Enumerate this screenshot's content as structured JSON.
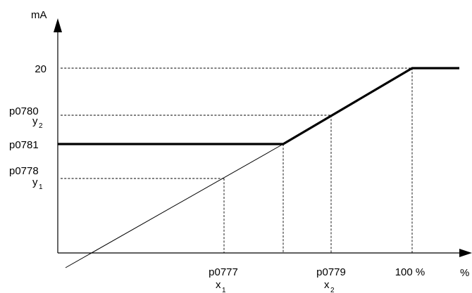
{
  "axes": {
    "y_unit": "mA",
    "x_unit": "%"
  },
  "y_labels": {
    "twenty": "20",
    "p0780": "p0780",
    "y2_main": "y",
    "y2_sub": "2",
    "p0781": "p0781",
    "p0778": "p0778",
    "y1_main": "y",
    "y1_sub": "1"
  },
  "x_labels": {
    "p0777": "p0777",
    "x1_main": "x",
    "x1_sub": "1",
    "p0779": "p0779",
    "x2_main": "x",
    "x2_sub": "2",
    "hundred": "100 %"
  }
}
